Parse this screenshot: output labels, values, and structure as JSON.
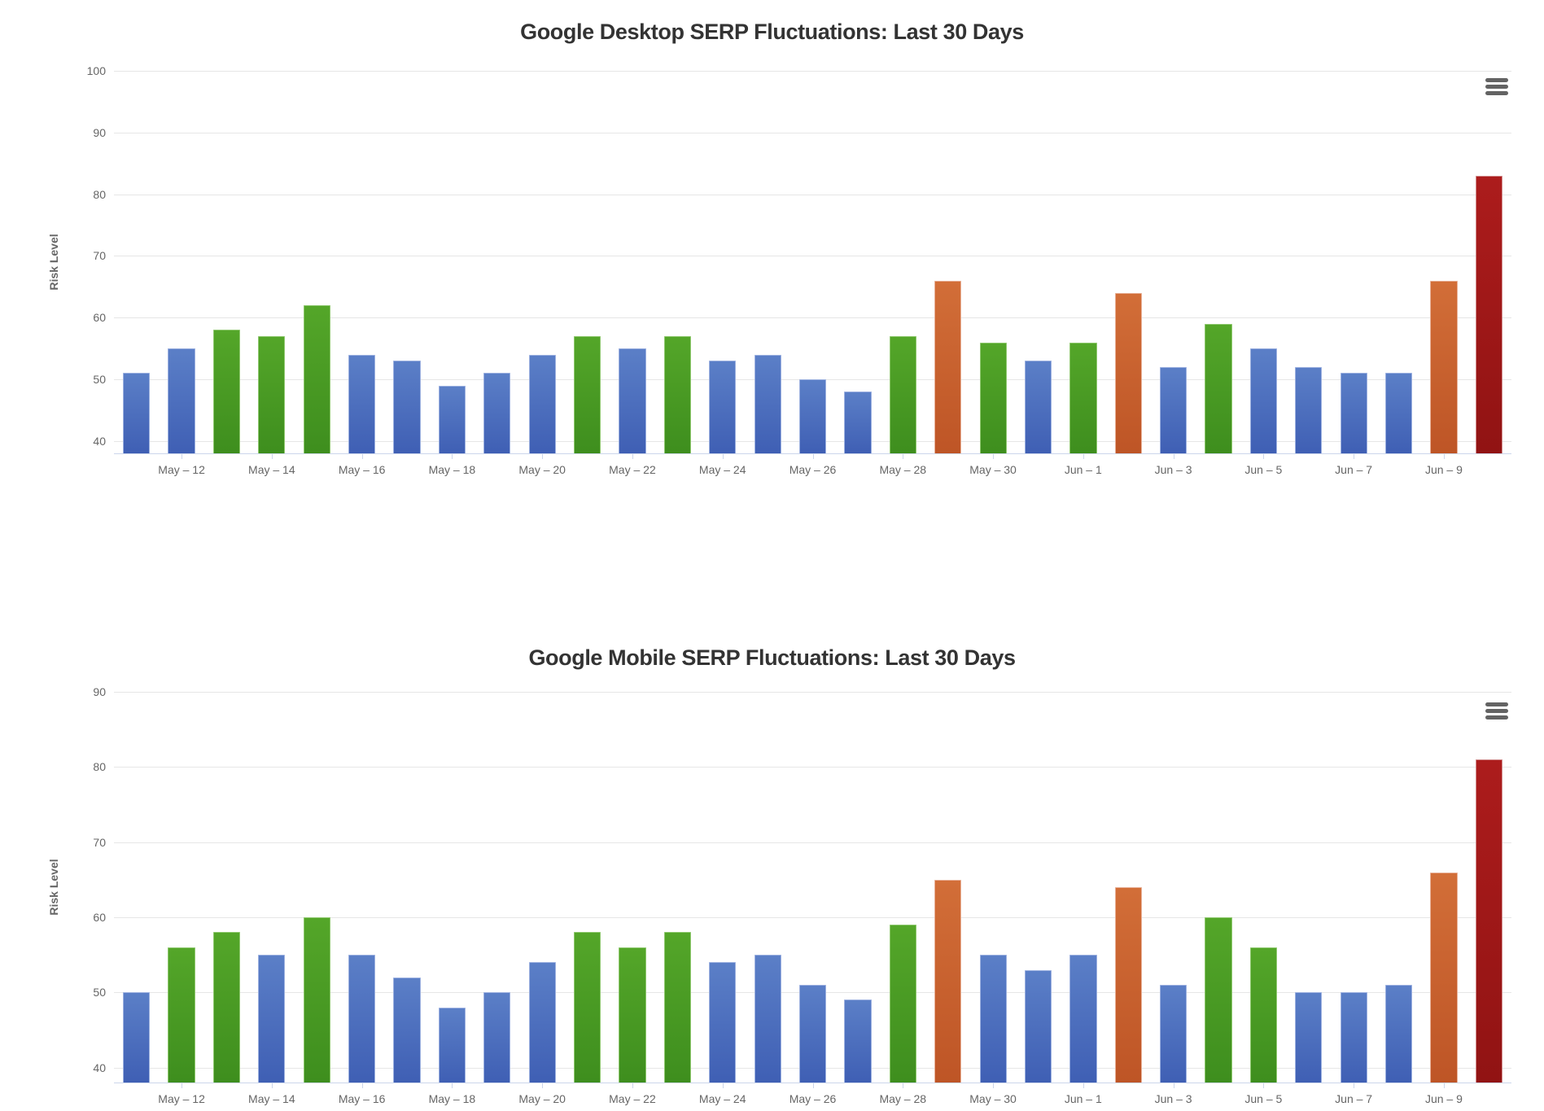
{
  "page": {
    "background": "#ffffff"
  },
  "styles": {
    "title_color": "#333333",
    "axis_text_color": "#666666",
    "grid_color": "#e6e6e6",
    "axis_line_color": "#ccd6eb",
    "menu_icon_color": "#636363"
  },
  "palette": {
    "blue": {
      "top": "#5b7fc7",
      "bottom": "#3f5fb4",
      "border": "#9db1e0"
    },
    "green": {
      "top": "#54a629",
      "bottom": "#3e8e1e",
      "border": "#8fc86f"
    },
    "orange": {
      "top": "#d26e38",
      "bottom": "#be5526",
      "border": "#e8b097"
    },
    "red": {
      "top": "#ac1c1c",
      "bottom": "#911313",
      "border": "#d08a8a"
    }
  },
  "chart_data": [
    {
      "type": "bar",
      "title": "Google Desktop SERP Fluctuations: Last 30 Days",
      "ylabel": "Risk Level",
      "xlabel": "",
      "ylim": [
        38,
        100
      ],
      "y_ticks": [
        40,
        50,
        60,
        70,
        80,
        90,
        100
      ],
      "grid": true,
      "legend": false,
      "x_tick_labels": [
        "",
        "May – 12",
        "",
        "May – 14",
        "",
        "May – 16",
        "",
        "May – 18",
        "",
        "May – 20",
        "",
        "May – 22",
        "",
        "May – 24",
        "",
        "May – 26",
        "",
        "May – 28",
        "",
        "May – 30",
        "",
        "Jun – 1",
        "",
        "Jun – 3",
        "",
        "Jun – 5",
        "",
        "Jun – 7",
        "",
        "Jun – 9",
        ""
      ],
      "values": [
        51,
        55,
        58,
        57,
        62,
        54,
        53,
        49,
        51,
        54,
        57,
        55,
        57,
        53,
        54,
        50,
        48,
        57,
        66,
        56,
        53,
        56,
        64,
        52,
        59,
        55,
        52,
        51,
        51,
        66,
        83
      ],
      "colors": [
        "blue",
        "blue",
        "green",
        "green",
        "green",
        "blue",
        "blue",
        "blue",
        "blue",
        "blue",
        "green",
        "blue",
        "green",
        "blue",
        "blue",
        "blue",
        "blue",
        "green",
        "orange",
        "green",
        "blue",
        "green",
        "orange",
        "blue",
        "green",
        "blue",
        "blue",
        "blue",
        "blue",
        "orange",
        "red"
      ]
    },
    {
      "type": "bar",
      "title": "Google Mobile SERP Fluctuations: Last 30 Days",
      "ylabel": "Risk Level",
      "xlabel": "",
      "ylim": [
        38,
        90
      ],
      "y_ticks": [
        40,
        50,
        60,
        70,
        80,
        90
      ],
      "grid": true,
      "legend": false,
      "x_tick_labels": [
        "",
        "May – 12",
        "",
        "May – 14",
        "",
        "May – 16",
        "",
        "May – 18",
        "",
        "May – 20",
        "",
        "May – 22",
        "",
        "May – 24",
        "",
        "May – 26",
        "",
        "May – 28",
        "",
        "May – 30",
        "",
        "Jun – 1",
        "",
        "Jun – 3",
        "",
        "Jun – 5",
        "",
        "Jun – 7",
        "",
        "Jun – 9",
        ""
      ],
      "values": [
        50,
        56,
        58,
        55,
        60,
        55,
        52,
        48,
        50,
        54,
        58,
        56,
        58,
        54,
        55,
        51,
        49,
        59,
        65,
        55,
        53,
        55,
        64,
        51,
        60,
        56,
        50,
        50,
        51,
        66,
        81
      ],
      "colors": [
        "blue",
        "green",
        "green",
        "blue",
        "green",
        "blue",
        "blue",
        "blue",
        "blue",
        "blue",
        "green",
        "green",
        "green",
        "blue",
        "blue",
        "blue",
        "blue",
        "green",
        "orange",
        "blue",
        "blue",
        "blue",
        "orange",
        "blue",
        "green",
        "green",
        "blue",
        "blue",
        "blue",
        "orange",
        "red"
      ]
    }
  ]
}
